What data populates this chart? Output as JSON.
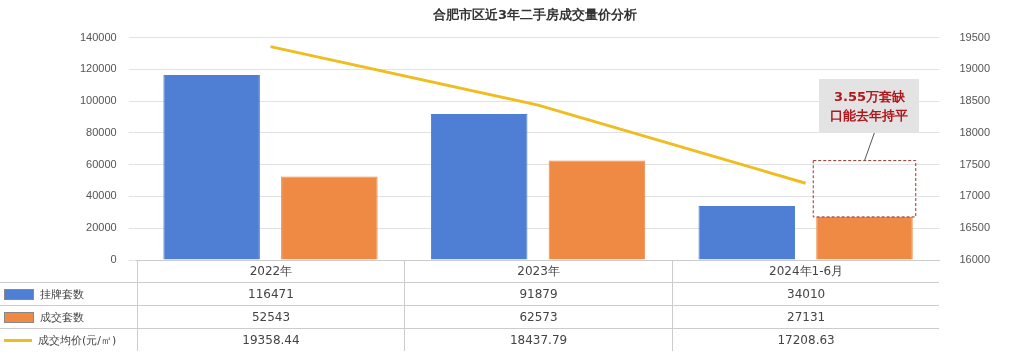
{
  "chart_data": {
    "type": "bar",
    "title": "合肥市区近3年二手房成交量价分析",
    "categories": [
      "2022年",
      "2023年",
      "2024年1-6月"
    ],
    "series": [
      {
        "name": "挂牌套数",
        "color": "#4f7fd4",
        "values": [
          116471,
          91879,
          34010
        ]
      },
      {
        "name": "成交套数",
        "color": "#ee8a43",
        "values": [
          52543,
          62573,
          27131
        ]
      },
      {
        "name": "成交均价(元/㎡)",
        "type": "line",
        "axis": "y2",
        "color": "#efbd1f",
        "values": [
          19358.44,
          18437.79,
          17208.63
        ]
      }
    ],
    "ylim": [
      0,
      140000
    ],
    "yticks": [
      0,
      20000,
      40000,
      60000,
      80000,
      100000,
      120000,
      140000
    ],
    "y2lim": [
      16000,
      19500
    ],
    "y2ticks": [
      16000,
      16500,
      17000,
      17500,
      18000,
      18500,
      19000,
      19500
    ],
    "annotations": [
      "3.55万套缺口能去年持平"
    ],
    "grid": "y",
    "legend": "bottom",
    "data_labels": true,
    "marker": "none",
    "line_style": "solid"
  }
}
